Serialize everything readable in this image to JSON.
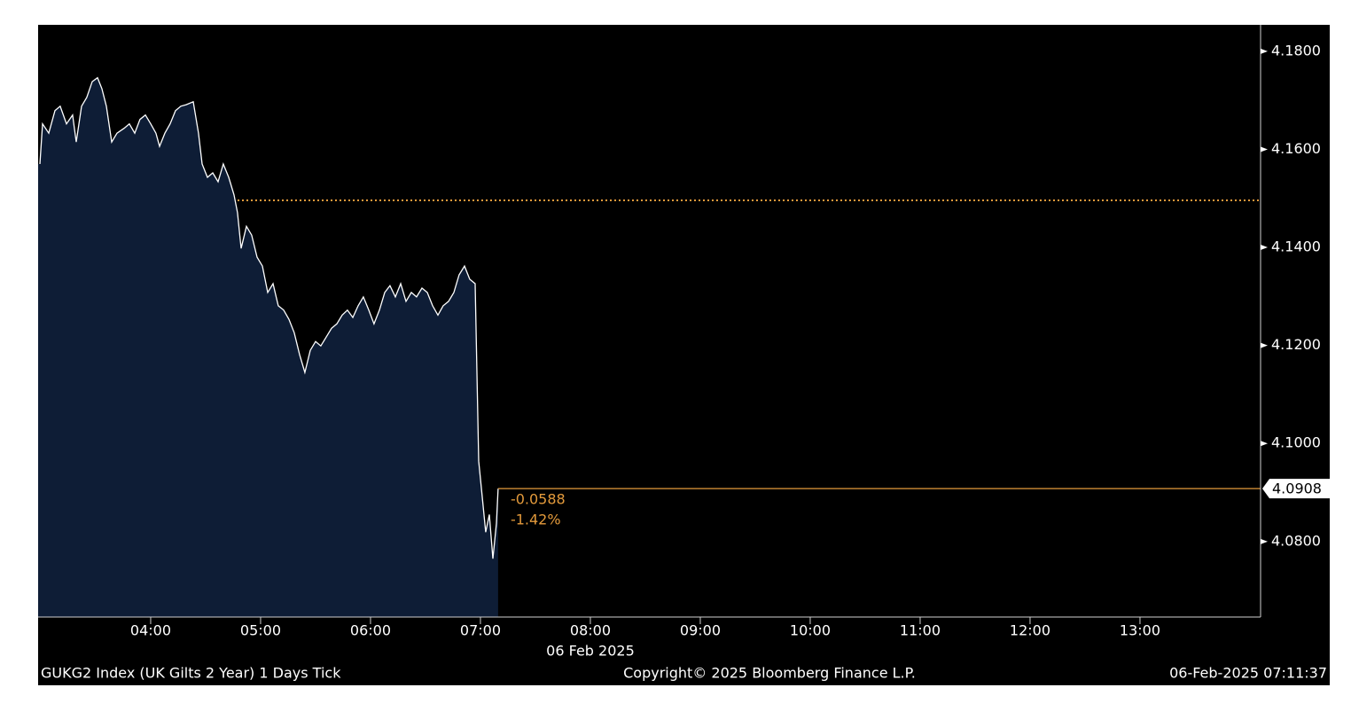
{
  "chart_data": {
    "type": "line",
    "x": [
      2.992,
      3.016,
      3.073,
      3.129,
      3.177,
      3.234,
      3.29,
      3.323,
      3.371,
      3.419,
      3.468,
      3.516,
      3.556,
      3.597,
      3.645,
      3.694,
      3.758,
      3.806,
      3.855,
      3.903,
      3.952,
      4.0,
      4.048,
      4.081,
      4.129,
      4.177,
      4.226,
      4.274,
      4.323,
      4.387,
      4.435,
      4.468,
      4.516,
      4.565,
      4.613,
      4.661,
      4.71,
      4.758,
      4.79,
      4.823,
      4.871,
      4.919,
      4.968,
      5.016,
      5.065,
      5.113,
      5.161,
      5.21,
      5.258,
      5.306,
      5.355,
      5.403,
      5.452,
      5.5,
      5.548,
      5.597,
      5.645,
      5.694,
      5.742,
      5.79,
      5.839,
      5.887,
      5.935,
      5.984,
      6.032,
      6.081,
      6.129,
      6.177,
      6.226,
      6.274,
      6.323,
      6.371,
      6.419,
      6.468,
      6.516,
      6.565,
      6.613,
      6.661,
      6.71,
      6.758,
      6.806,
      6.855,
      6.903,
      6.952,
      6.984,
      7.016,
      7.048,
      7.081,
      7.113,
      7.145,
      7.161
    ],
    "series": [
      {
        "color": "#ffffff",
        "fill": "#0e1d36",
        "values": [
          4.157,
          4.1652,
          4.1633,
          4.1679,
          4.1688,
          4.1652,
          4.167,
          4.1615,
          4.1688,
          4.1706,
          4.1738,
          4.1746,
          4.1724,
          4.1688,
          4.1615,
          4.1633,
          4.1643,
          4.1652,
          4.1633,
          4.1661,
          4.167,
          4.1652,
          4.1633,
          4.1606,
          4.1633,
          4.1652,
          4.1679,
          4.1688,
          4.1691,
          4.1697,
          4.1633,
          4.157,
          4.1543,
          4.1552,
          4.1534,
          4.157,
          4.1543,
          4.1507,
          4.1471,
          4.1398,
          4.1443,
          4.1425,
          4.138,
          4.1362,
          4.1308,
          4.1326,
          4.1281,
          4.1272,
          4.1253,
          4.1226,
          4.1181,
          4.1145,
          4.119,
          4.1208,
          4.1199,
          4.1217,
          4.1235,
          4.1244,
          4.1262,
          4.1272,
          4.1257,
          4.1281,
          4.1299,
          4.1272,
          4.1244,
          4.1272,
          4.1308,
          4.1322,
          4.1299,
          4.1326,
          4.129,
          4.1308,
          4.1299,
          4.1317,
          4.1308,
          4.1281,
          4.1262,
          4.1281,
          4.129,
          4.1308,
          4.1344,
          4.1362,
          4.1335,
          4.1326,
          4.0964,
          4.0891,
          4.0819,
          4.0855,
          4.0765,
          4.0837,
          4.0908
        ]
      }
    ],
    "xlim": [
      2.976,
      14.097
    ],
    "xticks": [
      {
        "value": 4,
        "label": "04:00"
      },
      {
        "value": 5,
        "label": "05:00"
      },
      {
        "value": 6,
        "label": "06:00"
      },
      {
        "value": 7,
        "label": "07:00"
      },
      {
        "value": 8,
        "label": "08:00"
      },
      {
        "value": 9,
        "label": "09:00"
      },
      {
        "value": 10,
        "label": "10:00"
      },
      {
        "value": 11,
        "label": "11:00"
      },
      {
        "value": 12,
        "label": "12:00"
      },
      {
        "value": 13,
        "label": "13:00"
      }
    ],
    "ylim": [
      4.0646,
      4.1854
    ],
    "yticks": [
      {
        "value": 4.08,
        "label": "4.0800"
      },
      {
        "value": 4.1,
        "label": "4.1000"
      },
      {
        "value": 4.12,
        "label": "4.1200"
      },
      {
        "value": 4.14,
        "label": "4.1400"
      },
      {
        "value": 4.16,
        "label": "4.1600"
      },
      {
        "value": 4.18,
        "label": "4.1800"
      }
    ],
    "reference_line": {
      "value": 4.1496,
      "color": "#e39a3b"
    },
    "last_line_color": "#e39a3b",
    "annotations": [
      "-0.0588",
      "-1.42%"
    ],
    "date_label": "06 Feb 2025",
    "footer": {
      "left": "GUKG2 Index (UK Gilts 2 Year) 1 Days  Tick",
      "center": "Copyright© 2025 Bloomberg Finance L.P.",
      "right": "06-Feb-2025 07:11:37"
    }
  }
}
